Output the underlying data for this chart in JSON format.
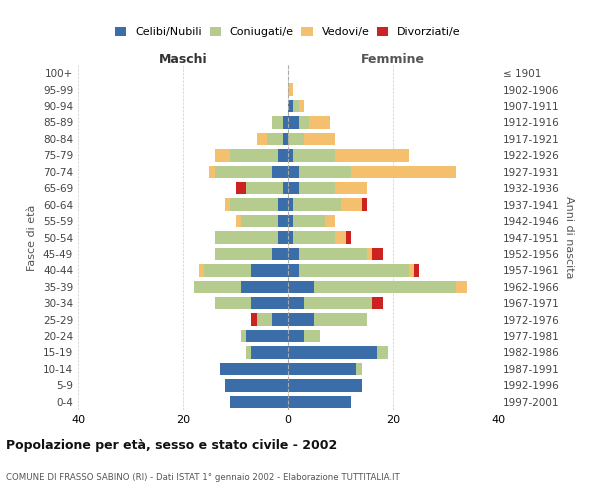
{
  "age_groups": [
    "0-4",
    "5-9",
    "10-14",
    "15-19",
    "20-24",
    "25-29",
    "30-34",
    "35-39",
    "40-44",
    "45-49",
    "50-54",
    "55-59",
    "60-64",
    "65-69",
    "70-74",
    "75-79",
    "80-84",
    "85-89",
    "90-94",
    "95-99",
    "100+"
  ],
  "birth_years": [
    "1997-2001",
    "1992-1996",
    "1987-1991",
    "1982-1986",
    "1977-1981",
    "1972-1976",
    "1967-1971",
    "1962-1966",
    "1957-1961",
    "1952-1956",
    "1947-1951",
    "1942-1946",
    "1937-1941",
    "1932-1936",
    "1927-1931",
    "1922-1926",
    "1917-1921",
    "1912-1916",
    "1907-1911",
    "1902-1906",
    "≤ 1901"
  ],
  "maschi": {
    "celibi": [
      11,
      12,
      13,
      7,
      8,
      3,
      7,
      9,
      7,
      3,
      2,
      2,
      2,
      1,
      3,
      2,
      1,
      1,
      0,
      0,
      0
    ],
    "coniugati": [
      0,
      0,
      0,
      1,
      1,
      3,
      7,
      9,
      9,
      11,
      12,
      7,
      9,
      7,
      11,
      9,
      3,
      2,
      0,
      0,
      0
    ],
    "vedovi": [
      0,
      0,
      0,
      0,
      0,
      0,
      0,
      0,
      1,
      0,
      0,
      1,
      1,
      0,
      1,
      3,
      2,
      0,
      0,
      0,
      0
    ],
    "divorziati": [
      0,
      0,
      0,
      0,
      0,
      1,
      0,
      0,
      0,
      0,
      0,
      0,
      0,
      2,
      0,
      0,
      0,
      0,
      0,
      0,
      0
    ]
  },
  "femmine": {
    "nubili": [
      12,
      14,
      13,
      17,
      3,
      5,
      3,
      5,
      2,
      2,
      1,
      1,
      1,
      2,
      2,
      1,
      0,
      2,
      1,
      0,
      0
    ],
    "coniugate": [
      0,
      0,
      1,
      2,
      3,
      10,
      13,
      27,
      21,
      13,
      8,
      6,
      9,
      7,
      10,
      8,
      3,
      2,
      1,
      0,
      0
    ],
    "vedove": [
      0,
      0,
      0,
      0,
      0,
      0,
      0,
      2,
      1,
      1,
      2,
      2,
      4,
      6,
      20,
      14,
      6,
      4,
      1,
      1,
      0
    ],
    "divorziate": [
      0,
      0,
      0,
      0,
      0,
      0,
      2,
      0,
      1,
      2,
      1,
      0,
      1,
      0,
      0,
      0,
      0,
      0,
      0,
      0,
      0
    ]
  },
  "colors": {
    "celibi_nubili": "#3b6ea8",
    "coniugati": "#b5cc8e",
    "vedovi": "#f5c06e",
    "divorziati": "#cc2222"
  },
  "xlim": 40,
  "title": "Popolazione per età, sesso e stato civile - 2002",
  "subtitle": "COMUNE DI FRASSO SABINO (RI) - Dati ISTAT 1° gennaio 2002 - Elaborazione TUTTITALIA.IT",
  "ylabel_left": "Fasce di età",
  "ylabel_right": "Anni di nascita",
  "xlabel_left": "Maschi",
  "xlabel_right": "Femmine"
}
